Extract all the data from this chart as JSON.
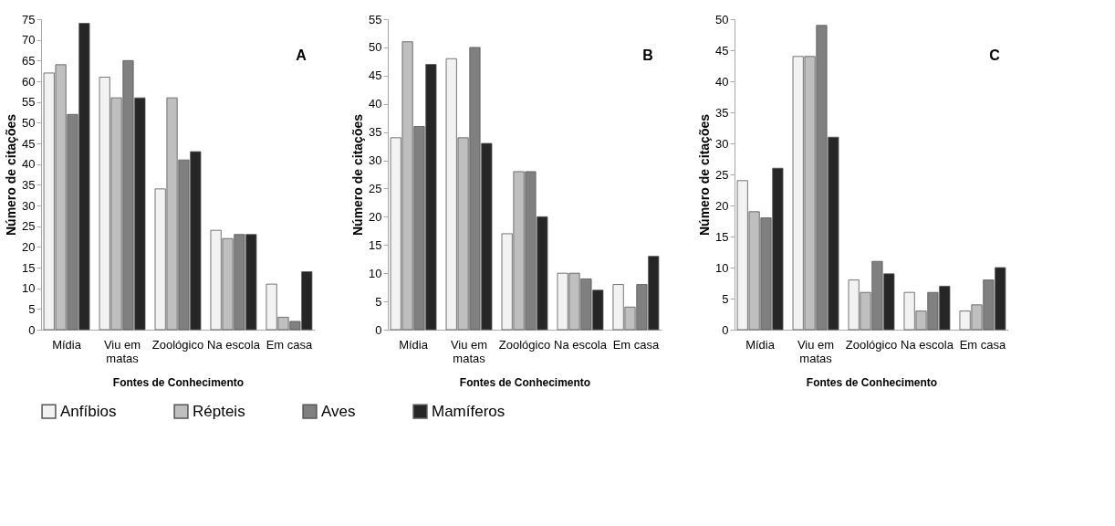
{
  "chart_data": [
    {
      "type": "bar",
      "annotations": [
        "A"
      ],
      "xlabel": "Fontes de Conhecimento",
      "ylabel": "Número de citações",
      "categories": [
        "Mídia",
        "Viu em matas",
        "Zoológico",
        "Na escola",
        "Em casa"
      ],
      "ylim": [
        0,
        75
      ],
      "yticks": [
        0,
        5,
        10,
        15,
        20,
        25,
        30,
        35,
        40,
        45,
        50,
        55,
        60,
        65,
        70,
        75
      ],
      "grid": false,
      "legend": "bottom",
      "series": [
        {
          "name": "Anfíbios",
          "color": "#f2f2f2",
          "values": [
            62,
            61,
            34,
            24,
            11
          ]
        },
        {
          "name": "Répteis",
          "color": "#bfbfbf",
          "values": [
            64,
            56,
            56,
            22,
            3
          ]
        },
        {
          "name": "Aves",
          "color": "#808080",
          "values": [
            52,
            65,
            41,
            23,
            2
          ]
        },
        {
          "name": "Mamíferos",
          "color": "#262626",
          "values": [
            74,
            56,
            43,
            23,
            14
          ]
        }
      ]
    },
    {
      "type": "bar",
      "annotations": [
        "B"
      ],
      "xlabel": "Fontes de Conhecimento",
      "ylabel": "Número de citações",
      "categories": [
        "Mídia",
        "Viu em matas",
        "Zoológico",
        "Na escola",
        "Em casa"
      ],
      "ylim": [
        0,
        55
      ],
      "yticks": [
        0,
        5,
        10,
        15,
        20,
        25,
        30,
        35,
        40,
        45,
        50,
        55
      ],
      "grid": false,
      "legend": "bottom",
      "series": [
        {
          "name": "Anfíbios",
          "color": "#f2f2f2",
          "values": [
            34,
            48,
            17,
            10,
            8
          ]
        },
        {
          "name": "Répteis",
          "color": "#bfbfbf",
          "values": [
            51,
            34,
            28,
            10,
            4
          ]
        },
        {
          "name": "Aves",
          "color": "#808080",
          "values": [
            36,
            50,
            28,
            9,
            8
          ]
        },
        {
          "name": "Mamíferos",
          "color": "#262626",
          "values": [
            47,
            33,
            20,
            7,
            13
          ]
        }
      ]
    },
    {
      "type": "bar",
      "annotations": [
        "C"
      ],
      "xlabel": "Fontes de Conhecimento",
      "ylabel": "Número de citações",
      "categories": [
        "Mídia",
        "Viu em matas",
        "Zoológico",
        "Na escola",
        "Em casa"
      ],
      "ylim": [
        0,
        50
      ],
      "yticks": [
        0,
        5,
        10,
        15,
        20,
        25,
        30,
        35,
        40,
        45,
        50
      ],
      "grid": false,
      "legend": "bottom",
      "series": [
        {
          "name": "Anfíbios",
          "color": "#f2f2f2",
          "values": [
            24,
            44,
            8,
            6,
            3
          ]
        },
        {
          "name": "Répteis",
          "color": "#bfbfbf",
          "values": [
            19,
            44,
            6,
            3,
            4
          ]
        },
        {
          "name": "Aves",
          "color": "#808080",
          "values": [
            18,
            49,
            11,
            6,
            8
          ]
        },
        {
          "name": "Mamíferos",
          "color": "#262626",
          "values": [
            26,
            31,
            9,
            7,
            10
          ]
        }
      ]
    }
  ]
}
